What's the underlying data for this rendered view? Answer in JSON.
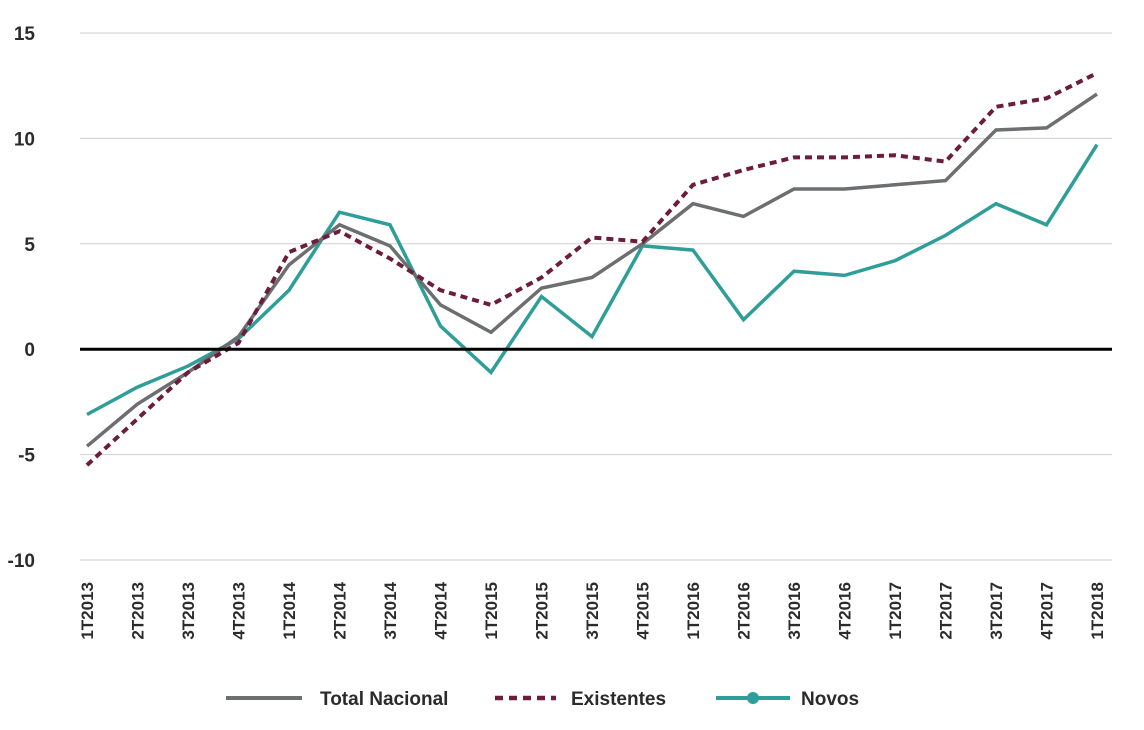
{
  "chart_data": {
    "type": "line",
    "title": "",
    "xlabel": "",
    "ylabel": "",
    "ylim": [
      -10,
      15
    ],
    "yticks": [
      15,
      10,
      5,
      0,
      -5,
      -10
    ],
    "grid": true,
    "legend_position": "bottom-center",
    "categories": [
      "1T2013",
      "2T2013",
      "3T2013",
      "4T2013",
      "1T2014",
      "2T2014",
      "3T2014",
      "4T2014",
      "1T2015",
      "2T2015",
      "3T2015",
      "4T2015",
      "1T2016",
      "2T2016",
      "3T2016",
      "4T2016",
      "1T2017",
      "2T2017",
      "3T2017",
      "4T2017",
      "1T2018"
    ],
    "series": [
      {
        "name": "Total Nacional",
        "color": "#6d6e70",
        "style": "solid",
        "values": [
          -4.6,
          -2.6,
          -1.1,
          0.6,
          4.0,
          5.9,
          4.9,
          2.1,
          0.8,
          2.9,
          3.4,
          5.0,
          6.9,
          6.3,
          7.6,
          7.6,
          7.8,
          8.0,
          10.4,
          10.5,
          12.1
        ]
      },
      {
        "name": "Existentes",
        "color": "#6b1d3b",
        "style": "dashed",
        "values": [
          -5.5,
          -3.3,
          -1.1,
          0.3,
          4.6,
          5.6,
          4.3,
          2.8,
          2.1,
          3.4,
          5.3,
          5.1,
          7.8,
          8.5,
          9.1,
          9.1,
          9.2,
          8.9,
          11.5,
          11.9,
          13.1
        ]
      },
      {
        "name": "Novos",
        "color": "#2e9e98",
        "style": "solid",
        "values": [
          -3.1,
          -1.8,
          -0.8,
          0.5,
          2.8,
          6.5,
          5.9,
          1.1,
          -1.1,
          2.5,
          0.6,
          4.9,
          4.7,
          1.4,
          3.7,
          3.5,
          4.2,
          5.4,
          6.9,
          5.9,
          9.7
        ]
      }
    ]
  }
}
